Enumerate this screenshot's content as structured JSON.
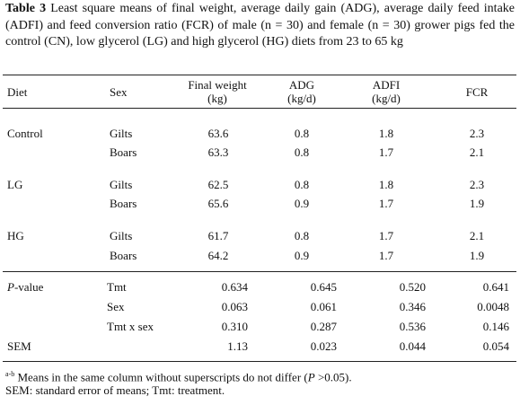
{
  "caption": {
    "label": "Table 3",
    "text": " Least square means of final weight, average daily gain (ADG), average daily feed intake (ADFI) and feed conversion ratio (FCR) of male  (n = 30)  and  female (n = 30) grower pigs fed the control (CN), low glycerol (LG) and high glycerol (HG) diets from 23 to 65 kg"
  },
  "headers": {
    "diet": "Diet",
    "sex": "Sex",
    "final_weight_1": "Final weight",
    "final_weight_2": "(kg)",
    "adg_1": "ADG",
    "adg_2": "(kg/d)",
    "adfi_1": "ADFI",
    "adfi_2": "(kg/d)",
    "fcr": "FCR"
  },
  "rows": [
    {
      "diet": "Control",
      "sex": "Gilts",
      "fw": "63.6",
      "adg": "0.8",
      "adfi": "1.8",
      "fcr": "2.3"
    },
    {
      "diet": "",
      "sex": "Boars",
      "fw": "63.3",
      "adg": "0.8",
      "adfi": "1.7",
      "fcr": "2.1"
    },
    {
      "diet": "LG",
      "sex": "Gilts",
      "fw": "62.5",
      "adg": "0.8",
      "adfi": "1.8",
      "fcr": "2.3"
    },
    {
      "diet": "",
      "sex": "Boars",
      "fw": "65.6",
      "adg": "0.9",
      "adfi": "1.7",
      "fcr": "1.9"
    },
    {
      "diet": "HG",
      "sex": "Gilts",
      "fw": "61.7",
      "adg": "0.8",
      "adfi": "1.7",
      "fcr": "2.1"
    },
    {
      "diet": "",
      "sex": "Boars",
      "fw": "64.2",
      "adg": "0.9",
      "adfi": "1.7",
      "fcr": "1.9"
    }
  ],
  "pvalue": {
    "label_italic": "P",
    "label_rest": "-value",
    "rows": [
      {
        "factor": "Tmt",
        "fw": "0.634",
        "adg": "0.645",
        "adfi": "0.520",
        "fcr": "0.641"
      },
      {
        "factor": "Sex",
        "fw": "0.063",
        "adg": "0.061",
        "adfi": "0.346",
        "fcr": "0.0048"
      },
      {
        "factor": "Tmt x sex",
        "fw": "0.310",
        "adg": "0.287",
        "adfi": "0.536",
        "fcr": "0.146"
      }
    ]
  },
  "sem": {
    "label": "SEM",
    "fw": "1.13",
    "adg": "0.023",
    "adfi": "0.044",
    "fcr": "0.054"
  },
  "footnotes": {
    "sup": "a-b",
    "note1_a": " Means in the same column without superscripts do not differ (",
    "note1_p": "P",
    "note1_b": " >0.05).",
    "note2": "SEM: standard error of means; Tmt: treatment."
  }
}
